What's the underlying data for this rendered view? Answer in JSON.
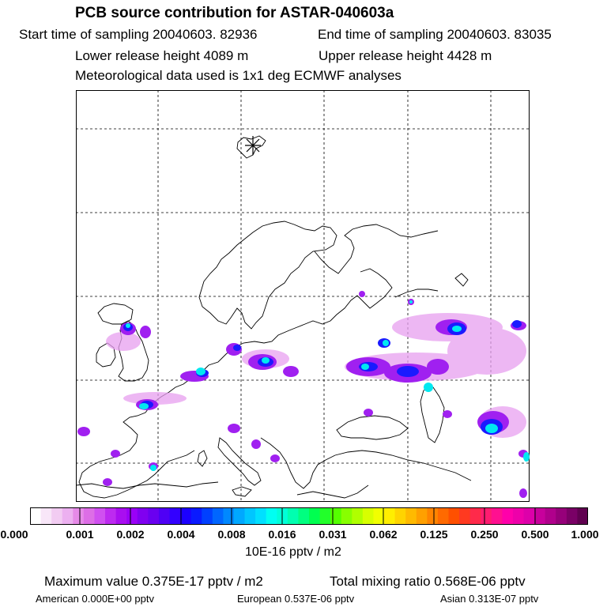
{
  "header": {
    "title": "PCB source contribution for ASTAR-040603a",
    "start_time": "Start time of sampling 20040603. 82936",
    "end_time": "End time of sampling 20040603. 83035",
    "lower_height": "Lower release height 4089 m",
    "upper_height": "Upper release height 4428 m",
    "met_data": "Meteorological data used is 1x1 deg ECMWF analyses"
  },
  "map": {
    "release_marker_icon": "asterisk-release-point-icon",
    "grid_style": "dashed"
  },
  "colorbar": {
    "unit_label": "10E-16 pptv / m2",
    "ticks": [
      "0.000",
      "0.001",
      "0.002",
      "0.004",
      "0.008",
      "0.016",
      "0.031",
      "0.062",
      "0.125",
      "0.250",
      "0.500",
      "1.000"
    ],
    "colors": [
      "#ffffff",
      "#f8e6f8",
      "#f2ccf2",
      "#ecb0f0",
      "#e68ae8",
      "#dd6ee6",
      "#d050f0",
      "#bd2af0",
      "#a90ef0",
      "#9a00f7",
      "#8000f0",
      "#6a00f0",
      "#4f00f5",
      "#3300ff",
      "#1c00ff",
      "#0a1aff",
      "#0040ff",
      "#0066ff",
      "#0088ff",
      "#00a8ff",
      "#00c6ff",
      "#00e0ff",
      "#00fff2",
      "#00ffd8",
      "#00ffb0",
      "#00ff80",
      "#00ff50",
      "#22ff2a",
      "#55ff00",
      "#88ff00",
      "#b0ff00",
      "#d8ff00",
      "#f2ff00",
      "#ffee00",
      "#ffd400",
      "#ffba00",
      "#ffa000",
      "#ff8400",
      "#ff6a00",
      "#ff5000",
      "#ff3a20",
      "#ff2a4a",
      "#ff1c70",
      "#ff1090",
      "#ff00aa",
      "#ee00aa",
      "#dd00aa",
      "#c8009c",
      "#b0008c",
      "#96007a",
      "#7a0066",
      "#600050"
    ]
  },
  "footer": {
    "max_value": "Maximum value  0.375E-17 pptv / m2",
    "total_mixing": "Total mixing ratio  0.568E-06 pptv",
    "american": "American  0.000E+00 pptv",
    "european": "European  0.537E-06 pptv",
    "asian": "Asian  0.313E-07 pptv"
  }
}
